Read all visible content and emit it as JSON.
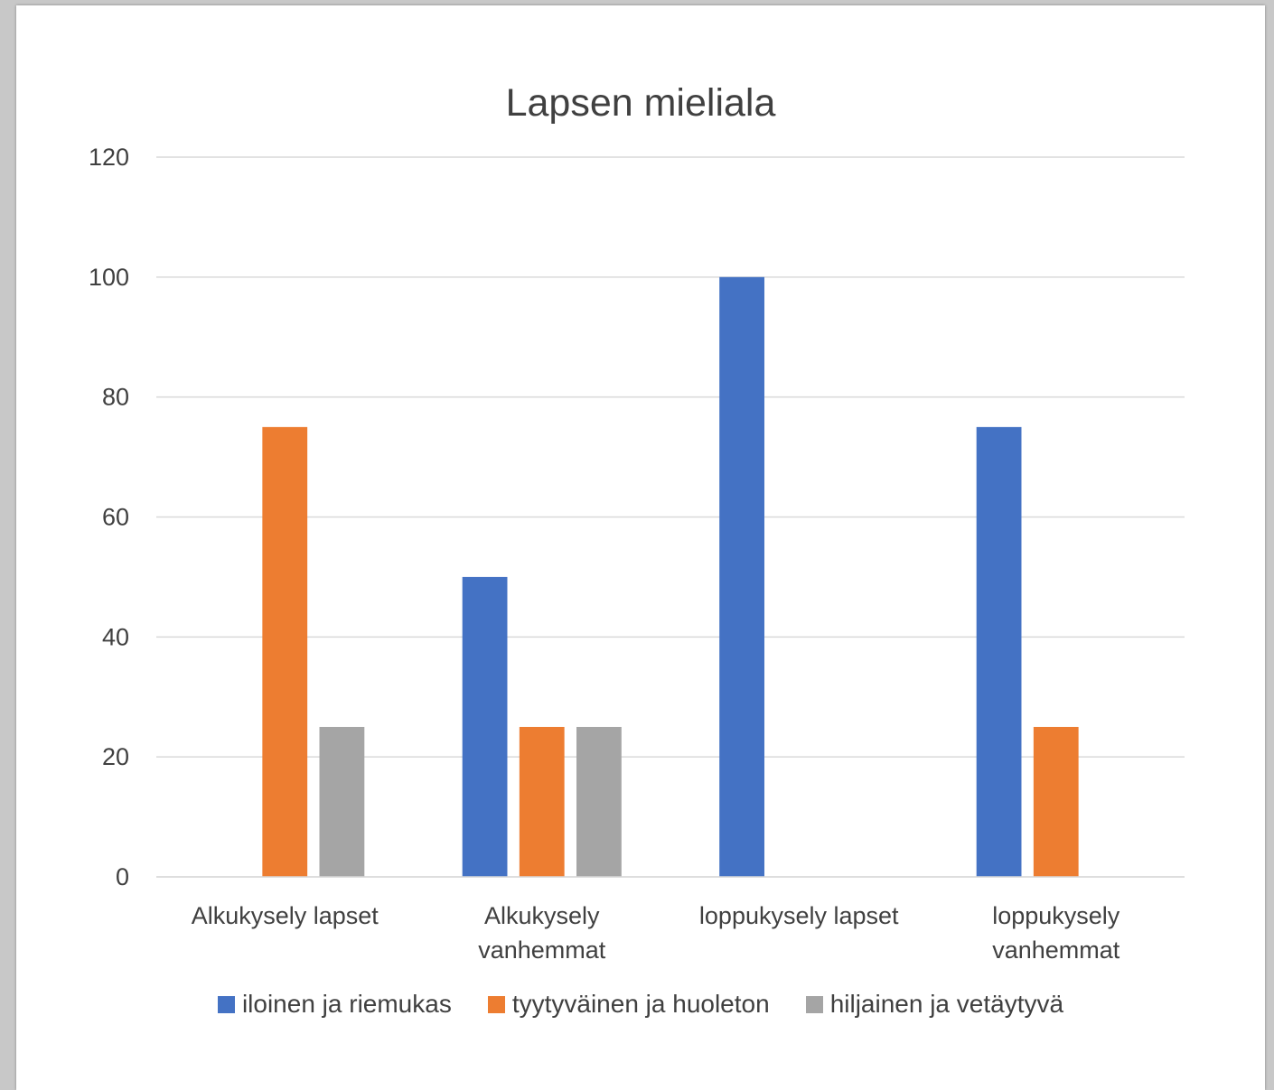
{
  "chart_data": {
    "type": "bar",
    "title": "Lapsen mieliala",
    "xlabel": "",
    "ylabel": "",
    "ylim": [
      0,
      120
    ],
    "yticks": [
      0,
      20,
      40,
      60,
      80,
      100,
      120
    ],
    "grid": true,
    "legend_position": "bottom",
    "categories": [
      [
        "Alkukysely lapset"
      ],
      [
        "Alkukysely",
        "vanhemmat"
      ],
      [
        "loppukysely lapset"
      ],
      [
        "loppukysely",
        "vanhemmat"
      ]
    ],
    "series": [
      {
        "name": "iloinen ja riemukas",
        "color": "#4472C4",
        "values": [
          0,
          50,
          100,
          75
        ]
      },
      {
        "name": "tyytyväinen ja huoleton",
        "color": "#ED7D31",
        "values": [
          75,
          25,
          0,
          25
        ]
      },
      {
        "name": "hiljainen ja vetäytyvä",
        "color": "#A5A5A5",
        "values": [
          25,
          25,
          0,
          0
        ]
      }
    ]
  }
}
